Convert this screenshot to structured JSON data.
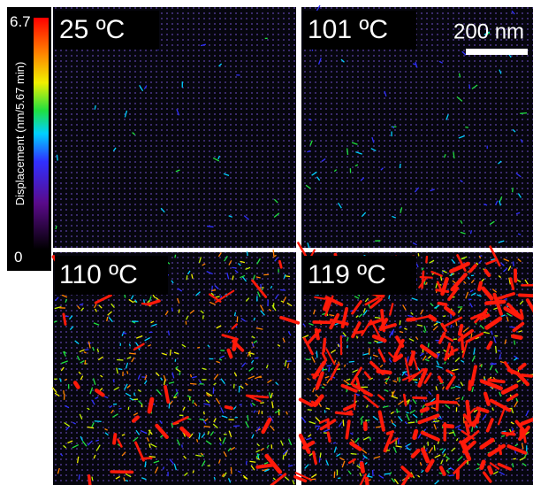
{
  "colorbar": {
    "max_label": "6.7",
    "min_label": "0",
    "title": "Displacement (nm/5.67 min)"
  },
  "panels": [
    {
      "label": "25 ºC"
    },
    {
      "label": "101 ºC"
    },
    {
      "label": "110 ºC"
    },
    {
      "label": "119 ºC"
    }
  ],
  "scale_bar": {
    "label": "200 nm"
  }
}
